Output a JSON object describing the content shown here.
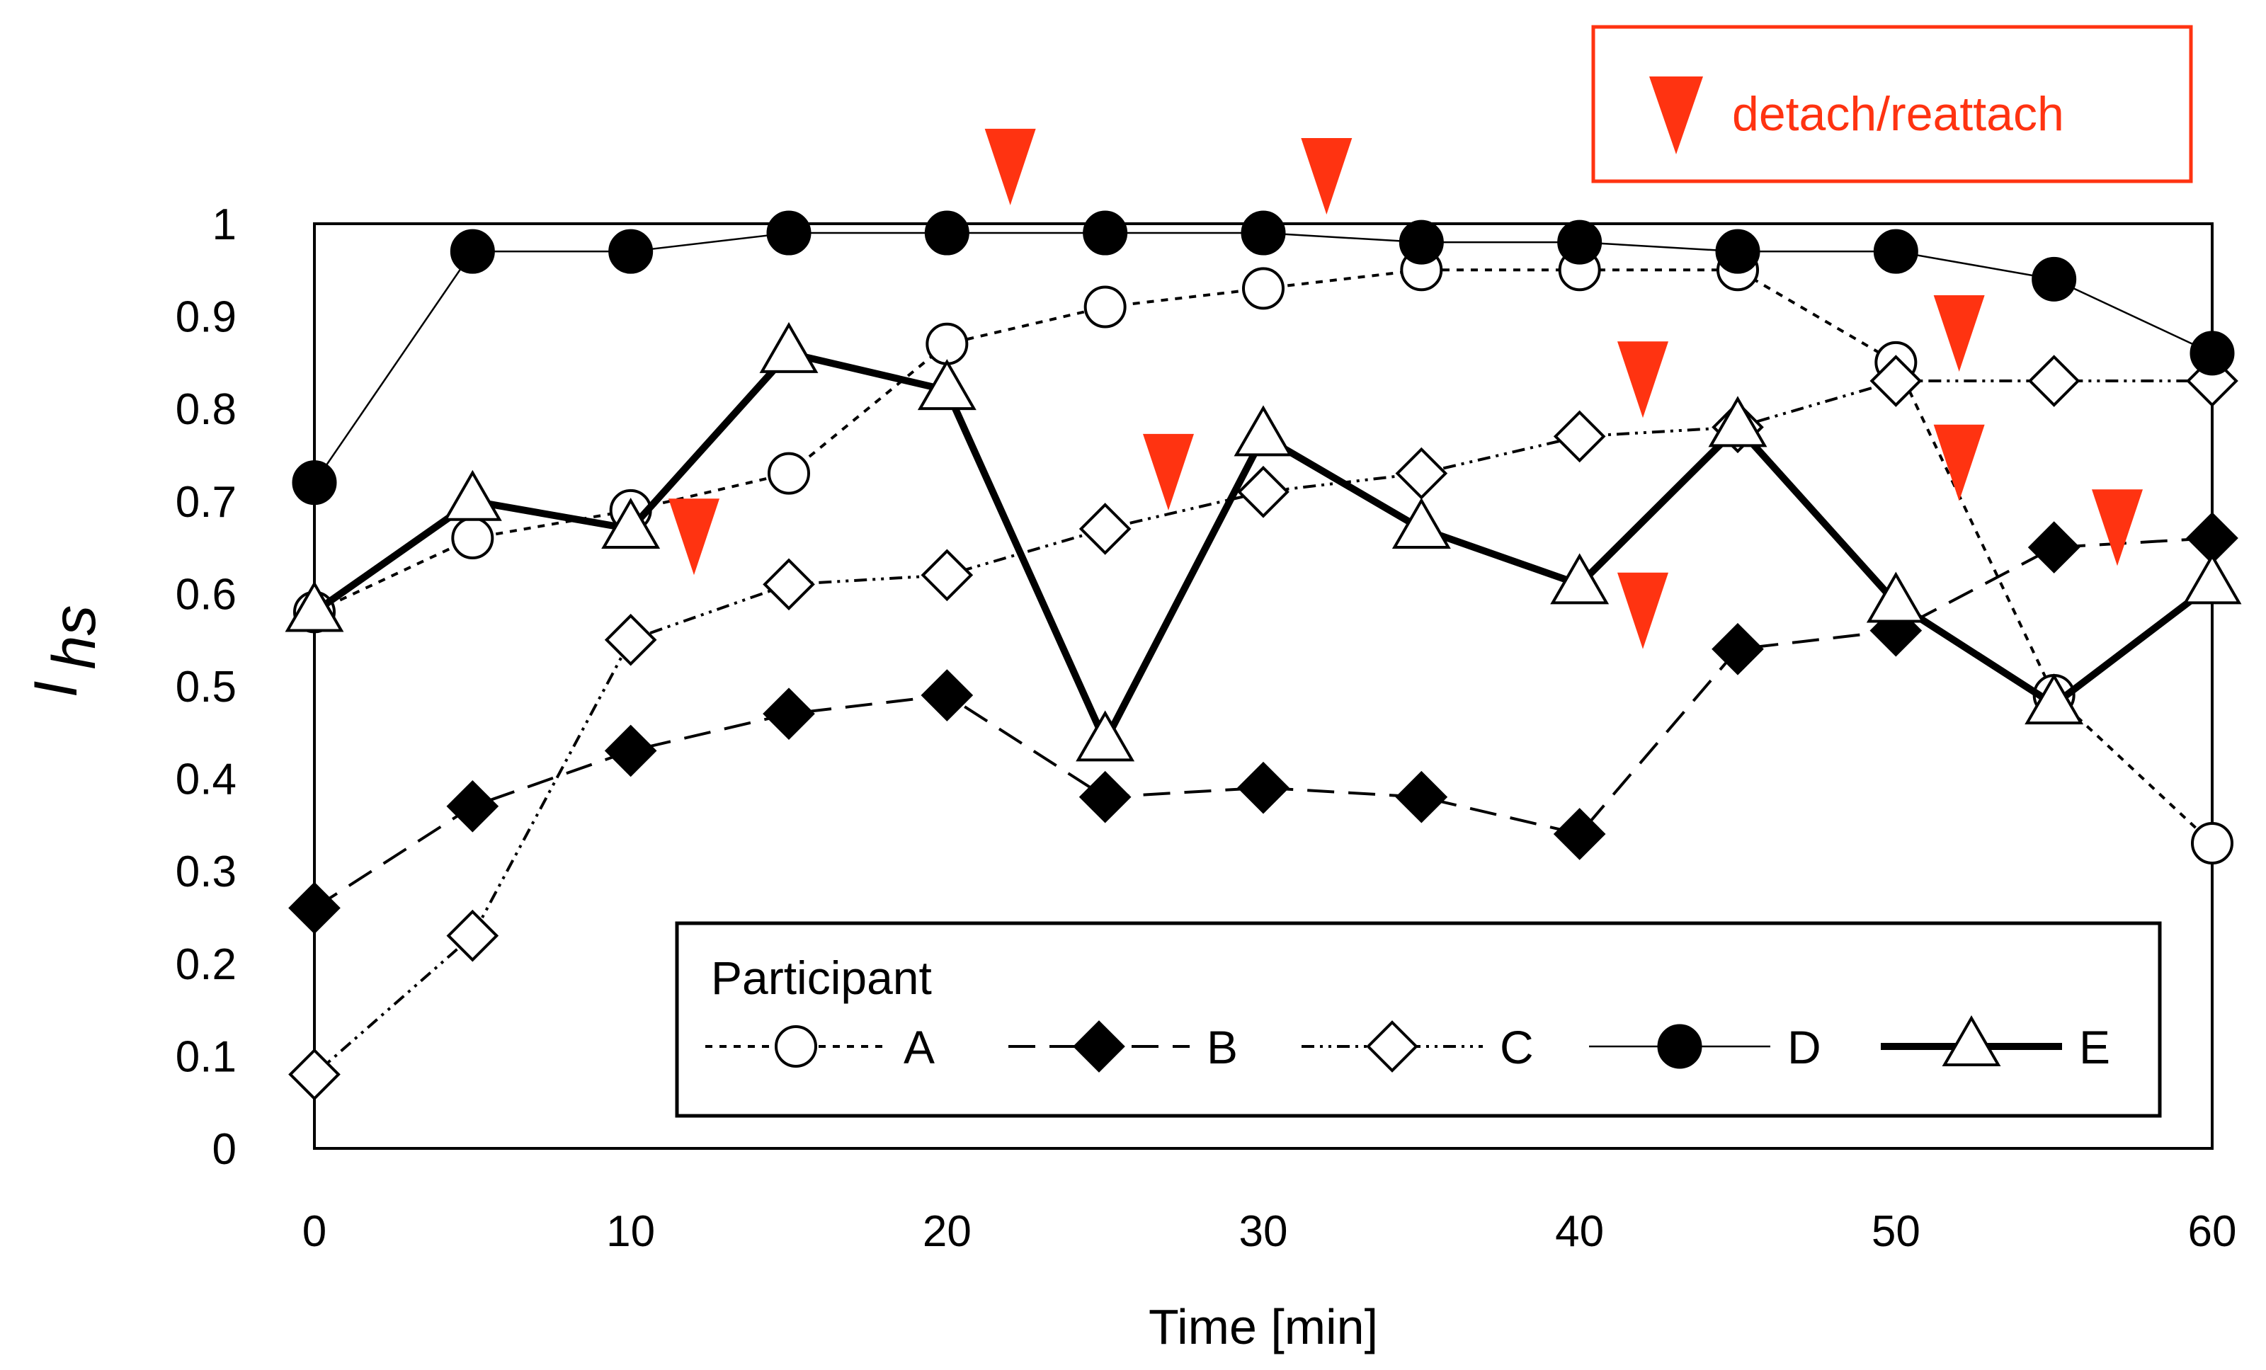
{
  "chart_data": {
    "type": "line",
    "title": "",
    "xlabel": "Time [min]",
    "ylabel_main": "I",
    "ylabel_sub": "hs",
    "xlim": [
      0,
      60
    ],
    "ylim": [
      0,
      1
    ],
    "x_ticks": [
      "0",
      "10",
      "20",
      "30",
      "40",
      "50",
      "60"
    ],
    "y_ticks": [
      "0",
      "0.1",
      "0.2",
      "0.3",
      "0.4",
      "0.5",
      "0.6",
      "0.7",
      "0.8",
      "0.9",
      "1"
    ],
    "x": [
      0,
      5,
      10,
      15,
      20,
      25,
      30,
      35,
      40,
      45,
      50,
      55,
      60
    ],
    "series": [
      {
        "name": "A",
        "marker": "open-circle",
        "line": "dotted",
        "values": [
          0.58,
          0.66,
          0.69,
          0.73,
          0.87,
          0.91,
          0.93,
          0.95,
          0.95,
          0.95,
          0.85,
          0.49,
          0.33
        ]
      },
      {
        "name": "B",
        "marker": "filled-diamond",
        "line": "dashed",
        "values": [
          0.26,
          0.37,
          0.43,
          0.47,
          0.49,
          0.38,
          0.39,
          0.38,
          0.34,
          0.54,
          0.56,
          0.65,
          0.66
        ]
      },
      {
        "name": "C",
        "marker": "open-diamond",
        "line": "dash-dot-dot",
        "values": [
          0.08,
          0.23,
          0.55,
          0.61,
          0.62,
          0.67,
          0.71,
          0.73,
          0.77,
          0.78,
          0.83,
          0.83,
          0.83
        ]
      },
      {
        "name": "D",
        "marker": "filled-circle",
        "line": "thin-solid",
        "values": [
          0.72,
          0.97,
          0.97,
          0.99,
          0.99,
          0.99,
          0.99,
          0.98,
          0.98,
          0.97,
          0.97,
          0.94,
          0.86
        ]
      },
      {
        "name": "E",
        "marker": "open-triangle",
        "line": "thick-solid",
        "values": [
          0.58,
          0.7,
          0.67,
          0.86,
          0.82,
          0.44,
          0.77,
          0.67,
          0.61,
          0.78,
          0.59,
          0.48,
          0.61
        ]
      }
    ],
    "legend": {
      "title": "Participant",
      "position": "bottom-right"
    },
    "annotation": {
      "label": "detach/reattach",
      "color": "#FF3311",
      "markers": [
        {
          "x": 22,
          "y": 1.02
        },
        {
          "x": 32,
          "y": 1.01
        },
        {
          "x": 12,
          "y": 0.62
        },
        {
          "x": 27,
          "y": 0.69
        },
        {
          "x": 42,
          "y": 0.79
        },
        {
          "x": 42,
          "y": 0.54
        },
        {
          "x": 52,
          "y": 0.84
        },
        {
          "x": 52,
          "y": 0.7
        },
        {
          "x": 57,
          "y": 0.63
        }
      ]
    }
  }
}
